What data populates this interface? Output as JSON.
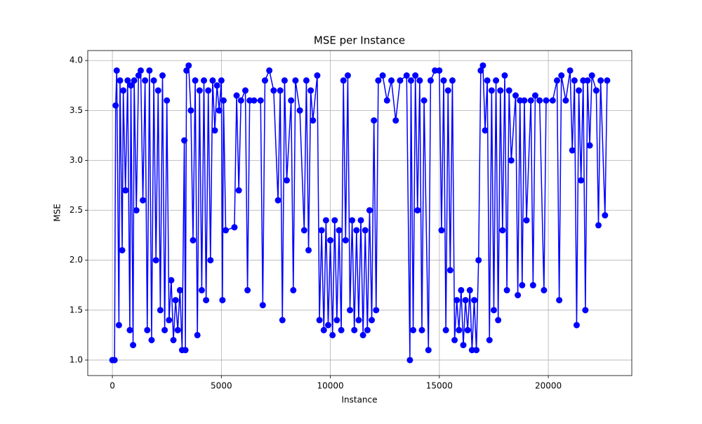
{
  "chart_data": {
    "type": "line",
    "title": "MSE per Instance",
    "xlabel": "Instance",
    "ylabel": "MSE",
    "x": [
      0,
      100,
      150,
      200,
      300,
      350,
      450,
      500,
      600,
      700,
      800,
      850,
      950,
      1000,
      1100,
      1200,
      1300,
      1400,
      1500,
      1600,
      1700,
      1800,
      1900,
      2000,
      2100,
      2200,
      2300,
      2400,
      2500,
      2600,
      2700,
      2800,
      2900,
      3000,
      3100,
      3200,
      3300,
      3350,
      3400,
      3500,
      3600,
      3700,
      3800,
      3900,
      4000,
      4100,
      4200,
      4300,
      4400,
      4500,
      4600,
      4700,
      4800,
      4900,
      5000,
      5050,
      5100,
      5200,
      5600,
      5700,
      5800,
      5900,
      6100,
      6200,
      6300,
      6500,
      6800,
      6900,
      7000,
      7200,
      7400,
      7600,
      7700,
      7800,
      7900,
      8000,
      8200,
      8300,
      8400,
      8600,
      8800,
      8900,
      9000,
      9100,
      9200,
      9400,
      9500,
      9600,
      9700,
      9800,
      9900,
      10000,
      10100,
      10200,
      10300,
      10400,
      10500,
      10600,
      10700,
      10800,
      10900,
      11000,
      11100,
      11200,
      11300,
      11400,
      11500,
      11600,
      11700,
      11800,
      11900,
      12000,
      12100,
      12200,
      12400,
      12600,
      12800,
      13000,
      13200,
      13500,
      13650,
      13700,
      13800,
      13900,
      14000,
      14100,
      14200,
      14300,
      14500,
      14600,
      14800,
      15000,
      15100,
      15200,
      15300,
      15400,
      15500,
      15600,
      15700,
      15800,
      15900,
      16000,
      16100,
      16200,
      16300,
      16400,
      16500,
      16600,
      16700,
      16800,
      16900,
      17000,
      17100,
      17200,
      17300,
      17400,
      17500,
      17600,
      17700,
      17800,
      17900,
      18000,
      18100,
      18200,
      18300,
      18500,
      18600,
      18700,
      18800,
      18900,
      19000,
      19200,
      19300,
      19400,
      19600,
      19800,
      19900,
      20200,
      20400,
      20500,
      20600,
      20800,
      21000,
      21100,
      21200,
      21300,
      21400,
      21500,
      21600,
      21700,
      21800,
      21900,
      22000,
      22200,
      22300,
      22400,
      22600,
      22700
    ],
    "series": [
      {
        "color": "#0000ff",
        "values": [
          1.0,
          1.0,
          3.55,
          3.9,
          1.35,
          3.8,
          2.1,
          3.7,
          2.7,
          3.8,
          1.3,
          3.75,
          1.15,
          3.8,
          2.5,
          3.85,
          3.9,
          2.6,
          3.8,
          1.3,
          3.9,
          1.2,
          3.8,
          2.0,
          3.7,
          1.5,
          3.85,
          1.3,
          3.6,
          1.4,
          1.8,
          1.2,
          1.6,
          1.3,
          1.7,
          1.1,
          3.2,
          1.1,
          3.9,
          3.95,
          3.5,
          2.2,
          3.8,
          1.25,
          3.7,
          1.7,
          3.8,
          1.6,
          3.7,
          2.0,
          3.8,
          3.3,
          3.75,
          3.5,
          3.8,
          1.6,
          3.6,
          2.3,
          2.33,
          3.65,
          2.7,
          3.6,
          3.7,
          1.7,
          3.6,
          3.6,
          3.6,
          1.55,
          3.8,
          3.9,
          3.7,
          2.6,
          3.7,
          1.4,
          3.8,
          2.8,
          3.6,
          1.7,
          3.8,
          3.5,
          2.3,
          3.8,
          2.1,
          3.7,
          3.4,
          3.85,
          1.4,
          2.3,
          1.3,
          2.4,
          1.35,
          2.2,
          1.25,
          2.4,
          1.4,
          2.3,
          1.3,
          3.8,
          2.2,
          3.85,
          1.5,
          2.4,
          1.3,
          2.3,
          1.4,
          2.4,
          1.25,
          2.3,
          1.3,
          2.5,
          1.4,
          3.4,
          1.5,
          3.8,
          3.85,
          3.6,
          3.8,
          3.4,
          3.8,
          3.85,
          1.0,
          3.8,
          1.3,
          3.85,
          2.5,
          3.8,
          1.3,
          3.6,
          1.1,
          3.8,
          3.9,
          3.9,
          2.3,
          3.8,
          1.3,
          3.7,
          1.9,
          3.8,
          1.2,
          1.6,
          1.3,
          1.7,
          1.15,
          1.6,
          1.3,
          1.7,
          1.1,
          1.6,
          1.1,
          2.0,
          3.9,
          3.95,
          3.3,
          3.8,
          1.2,
          3.7,
          1.5,
          3.8,
          1.4,
          3.7,
          2.3,
          3.85,
          1.7,
          3.7,
          3.0,
          3.65,
          1.65,
          3.6,
          1.75,
          3.6,
          2.4,
          3.6,
          1.75,
          3.65,
          3.6,
          1.7,
          3.6,
          3.6,
          3.8,
          1.6,
          3.85,
          3.6,
          3.9,
          3.1,
          3.8,
          1.35,
          3.7,
          2.8,
          3.8,
          1.5,
          3.8,
          3.15,
          3.85,
          3.7,
          2.35,
          3.8,
          2.45,
          3.8
        ]
      }
    ],
    "xlim": [
      -1130,
      23830
    ],
    "xticks": [
      0,
      5000,
      10000,
      15000,
      20000
    ],
    "ylim": [
      0.845,
      4.1
    ],
    "yticks": [
      {
        "value": 1,
        "label": "1.0"
      },
      1.5,
      {
        "value": 2,
        "label": "2.0"
      },
      2.5,
      {
        "value": 3,
        "label": "3.0"
      },
      3.5,
      {
        "value": 4,
        "label": "4.0"
      }
    ],
    "grid": true
  }
}
